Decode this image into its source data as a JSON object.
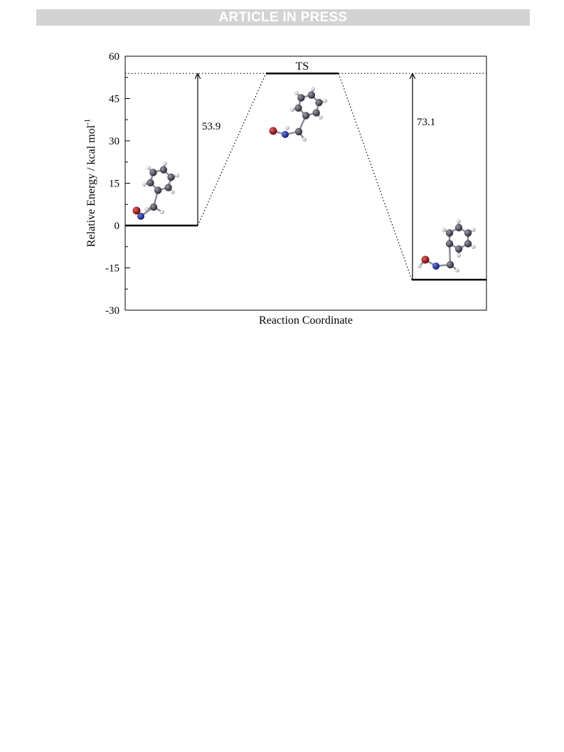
{
  "header": {
    "banner_text": "ARTICLE IN PRESS"
  },
  "chart_data": {
    "type": "energy-level-diagram",
    "title": "",
    "xlabel": "Reaction Coordinate",
    "ylabel": "Relative Energy / kcal mol",
    "ylabel_superscript": "-1",
    "ylim": [
      -30,
      60
    ],
    "yticks": [
      -30,
      -15,
      0,
      15,
      30,
      45,
      60
    ],
    "yticks_minor": [
      -22.5,
      -7.5,
      7.5,
      22.5,
      37.5,
      52.5
    ],
    "grid": false,
    "legend": "none",
    "levels": [
      {
        "name": "reactant",
        "energy": 0,
        "label": ""
      },
      {
        "name": "transition-state",
        "energy": 53.9,
        "label": "TS"
      },
      {
        "name": "product",
        "energy": -19.2,
        "label": ""
      }
    ],
    "reference_line": {
      "energy": 53.9,
      "style": "dotted"
    },
    "arrows": [
      {
        "from": 0,
        "to": 53.9,
        "label": "53.9"
      },
      {
        "from": -19.2,
        "to": 53.9,
        "label": "73.1"
      }
    ],
    "atom_colors": {
      "carbon": "#3a3a48",
      "hydrogen": "#e8e8ee",
      "nitrogen": "#1c2a9c",
      "oxygen": "#a01010"
    }
  }
}
